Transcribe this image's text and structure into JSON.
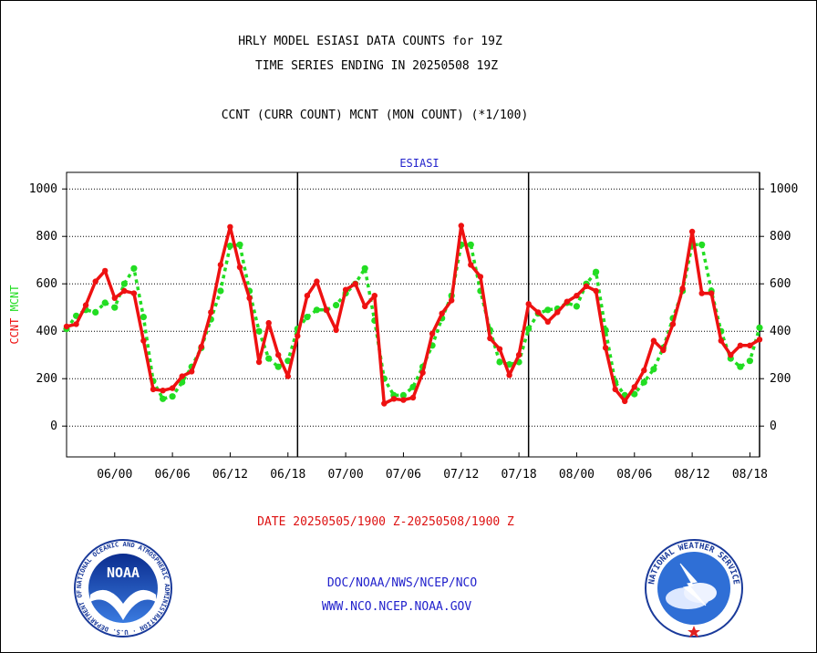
{
  "header": {
    "title_line1": "HRLY MODEL ESIASI DATA COUNTS for 19Z",
    "title_line2": "TIME SERIES ENDING IN 20250508 19Z",
    "subtitle": "CCNT (CURR COUNT) MCNT (MON COUNT) (*1/100)"
  },
  "footer": {
    "date_range": "DATE 20250505/1900 Z-20250508/1900 Z",
    "org": "DOC/NOAA/NWS/NCEP/NCO",
    "url": "WWW.NCO.NCEP.NOAA.GOV"
  },
  "logos": {
    "noaa_text": "NOAA",
    "noaa_ring": "NATIONAL OCEANIC AND ATMOSPHERIC ADMINISTRATION · U.S. DEPARTMENT OF COMMERCE ·",
    "nws_ring": "NATIONAL WEATHER SERVICE"
  },
  "colors": {
    "ccnt": "#ee1111",
    "mcnt": "#22dd22",
    "title": "#000000",
    "panel_title": "#2222cc",
    "date": "#dd1111",
    "org_text": "#2222cc"
  },
  "chart_data": {
    "type": "line",
    "title": "ESIASI",
    "ylabel_parts": [
      "CCNT",
      "MCNT"
    ],
    "ylim": [
      -130,
      1070
    ],
    "yticks": [
      0,
      200,
      400,
      600,
      800,
      1000
    ],
    "x_start_hour": -5,
    "x_end_hour": 67,
    "xticks": [
      {
        "hour": 0,
        "label": "06/00"
      },
      {
        "hour": 6,
        "label": "06/06"
      },
      {
        "hour": 12,
        "label": "06/12"
      },
      {
        "hour": 18,
        "label": "06/18"
      },
      {
        "hour": 24,
        "label": "07/00"
      },
      {
        "hour": 30,
        "label": "07/06"
      },
      {
        "hour": 36,
        "label": "07/12"
      },
      {
        "hour": 42,
        "label": "07/18"
      },
      {
        "hour": 48,
        "label": "08/00"
      },
      {
        "hour": 54,
        "label": "08/06"
      },
      {
        "hour": 60,
        "label": "08/12"
      },
      {
        "hour": 66,
        "label": "08/18"
      }
    ],
    "day_dividers": [
      19,
      43,
      67
    ],
    "grid": true,
    "series": [
      {
        "name": "CCNT",
        "values": [
          420,
          430,
          510,
          610,
          655,
          540,
          570,
          560,
          360,
          155,
          150,
          160,
          210,
          230,
          335,
          480,
          680,
          840,
          670,
          540,
          270,
          435,
          300,
          210,
          380,
          550,
          610,
          490,
          405,
          575,
          600,
          505,
          550,
          95,
          115,
          110,
          120,
          225,
          390,
          475,
          530,
          845,
          680,
          630,
          370,
          325,
          215,
          300,
          515,
          480,
          440,
          480,
          525,
          550,
          590,
          570,
          330,
          155,
          105,
          165,
          235,
          360,
          320,
          430,
          580,
          820,
          560,
          560,
          360,
          300,
          340,
          340,
          365
        ]
      },
      {
        "name": "MCNT",
        "values": [
          410,
          465,
          490,
          480,
          520,
          500,
          600,
          665,
          460,
          190,
          115,
          125,
          185,
          250,
          330,
          450,
          570,
          760,
          765,
          570,
          400,
          285,
          250,
          275,
          410,
          460,
          490,
          490,
          510,
          560,
          600,
          665,
          445,
          200,
          130,
          130,
          165,
          250,
          340,
          455,
          550,
          765,
          765,
          570,
          405,
          270,
          260,
          270,
          410,
          475,
          490,
          495,
          520,
          505,
          600,
          650,
          405,
          185,
          130,
          135,
          185,
          240,
          330,
          455,
          570,
          765,
          765,
          570,
          400,
          285,
          250,
          275,
          415
        ]
      }
    ]
  }
}
